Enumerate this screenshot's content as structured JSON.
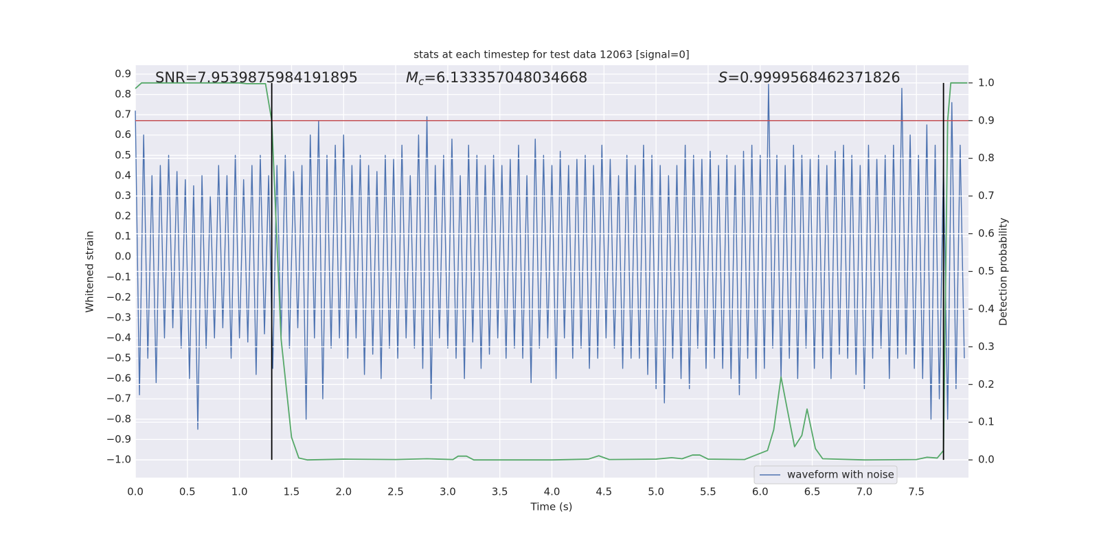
{
  "chart_data": {
    "type": "line",
    "title": "stats at each timestep for test data 12063 [signal=0]",
    "x_label": "Time (s)",
    "y_label": "Whitened strain",
    "y2_label": "Detection probability",
    "annotations": [
      {
        "text": "SNR=7.9539875984191895"
      },
      {
        "symbol": "M",
        "subscript": "c",
        "text": "=6.133357048034668"
      },
      {
        "symbol": "S",
        "text": "=0.9999568462371826"
      }
    ],
    "xlim": [
      0,
      8.0
    ],
    "ylim": [
      -1.088,
      0.944
    ],
    "y2lim": [
      -0.047,
      1.047
    ],
    "grid": true,
    "legend": "lower right",
    "xticks": [
      {
        "value": 0,
        "label": "0.0"
      },
      {
        "value": 0.5,
        "label": "0.5"
      },
      {
        "value": 1,
        "label": "1.0"
      },
      {
        "value": 1.5,
        "label": "1.5"
      },
      {
        "value": 2,
        "label": "2.0"
      },
      {
        "value": 2.5,
        "label": "2.5"
      },
      {
        "value": 3,
        "label": "3.0"
      },
      {
        "value": 3.5,
        "label": "3.5"
      },
      {
        "value": 4,
        "label": "4.0"
      },
      {
        "value": 4.5,
        "label": "4.5"
      },
      {
        "value": 5,
        "label": "5.0"
      },
      {
        "value": 5.5,
        "label": "5.5"
      },
      {
        "value": 6,
        "label": "6.0"
      },
      {
        "value": 6.5,
        "label": "6.5"
      },
      {
        "value": 7,
        "label": "7.0"
      },
      {
        "value": 7.5,
        "label": "7.5"
      }
    ],
    "yticks": [
      {
        "value": -1.0,
        "label": "−1.0"
      },
      {
        "value": -0.9,
        "label": "−0.9"
      },
      {
        "value": -0.8,
        "label": "−0.8"
      },
      {
        "value": -0.7,
        "label": "−0.7"
      },
      {
        "value": -0.6,
        "label": "−0.6"
      },
      {
        "value": -0.5,
        "label": "−0.5"
      },
      {
        "value": -0.4,
        "label": "−0.4"
      },
      {
        "value": -0.3,
        "label": "−0.3"
      },
      {
        "value": -0.2,
        "label": "−0.2"
      },
      {
        "value": -0.1,
        "label": "−0.1"
      },
      {
        "value": 0,
        "label": "0.0"
      },
      {
        "value": 0.1,
        "label": "0.1"
      },
      {
        "value": 0.2,
        "label": "0.2"
      },
      {
        "value": 0.3,
        "label": "0.3"
      },
      {
        "value": 0.4,
        "label": "0.4"
      },
      {
        "value": 0.5,
        "label": "0.5"
      },
      {
        "value": 0.6,
        "label": "0.6"
      },
      {
        "value": 0.7,
        "label": "0.7"
      },
      {
        "value": 0.8,
        "label": "0.8"
      },
      {
        "value": 0.9,
        "label": "0.9"
      }
    ],
    "y2ticks": [
      {
        "value": 0,
        "label": "0.0"
      },
      {
        "value": 0.1,
        "label": "0.1"
      },
      {
        "value": 0.2,
        "label": "0.2"
      },
      {
        "value": 0.3,
        "label": "0.3"
      },
      {
        "value": 0.4,
        "label": "0.4"
      },
      {
        "value": 0.5,
        "label": "0.5"
      },
      {
        "value": 0.6,
        "label": "0.6"
      },
      {
        "value": 0.7,
        "label": "0.7"
      },
      {
        "value": 0.8,
        "label": "0.8"
      },
      {
        "value": 0.9,
        "label": "0.9"
      },
      {
        "value": 1,
        "label": "1.0"
      }
    ],
    "threshold": {
      "value": 0.9,
      "axis": "y2",
      "color": "#c44e52"
    },
    "vlines": {
      "x": [
        1.31,
        7.76
      ],
      "ymin": 0,
      "ymax": 1,
      "axis": "y2",
      "color": "#000000"
    },
    "series": [
      {
        "name": "waveform with noise",
        "color": "#4c72b0",
        "axis": "y",
        "x": [
          0,
          0.04,
          0.08,
          0.12,
          0.16,
          0.2,
          0.24,
          0.28,
          0.32,
          0.36,
          0.4,
          0.44,
          0.48,
          0.52,
          0.56,
          0.6,
          0.64,
          0.68,
          0.72,
          0.76,
          0.8,
          0.84,
          0.88,
          0.92,
          0.96,
          1.0,
          1.04,
          1.08,
          1.12,
          1.16,
          1.2,
          1.24,
          1.28,
          1.32,
          1.36,
          1.4,
          1.44,
          1.48,
          1.52,
          1.56,
          1.6,
          1.64,
          1.68,
          1.72,
          1.76,
          1.8,
          1.84,
          1.88,
          1.92,
          1.96,
          2.0,
          2.04,
          2.08,
          2.12,
          2.16,
          2.2,
          2.24,
          2.28,
          2.32,
          2.36,
          2.4,
          2.44,
          2.48,
          2.52,
          2.56,
          2.6,
          2.64,
          2.68,
          2.72,
          2.76,
          2.8,
          2.84,
          2.88,
          2.92,
          2.96,
          3.0,
          3.04,
          3.08,
          3.12,
          3.16,
          3.2,
          3.24,
          3.28,
          3.32,
          3.36,
          3.4,
          3.44,
          3.48,
          3.52,
          3.56,
          3.6,
          3.64,
          3.68,
          3.72,
          3.76,
          3.8,
          3.84,
          3.88,
          3.92,
          3.96,
          4.0,
          4.04,
          4.08,
          4.12,
          4.16,
          4.2,
          4.24,
          4.28,
          4.32,
          4.36,
          4.4,
          4.44,
          4.48,
          4.52,
          4.56,
          4.6,
          4.64,
          4.68,
          4.72,
          4.76,
          4.8,
          4.84,
          4.88,
          4.92,
          4.96,
          5.0,
          5.04,
          5.08,
          5.12,
          5.16,
          5.2,
          5.24,
          5.28,
          5.32,
          5.36,
          5.4,
          5.44,
          5.48,
          5.52,
          5.56,
          5.6,
          5.64,
          5.68,
          5.72,
          5.76,
          5.8,
          5.84,
          5.88,
          5.92,
          5.96,
          6.0,
          6.04,
          6.08,
          6.12,
          6.16,
          6.2,
          6.24,
          6.28,
          6.32,
          6.36,
          6.4,
          6.44,
          6.48,
          6.52,
          6.56,
          6.6,
          6.64,
          6.68,
          6.72,
          6.76,
          6.8,
          6.84,
          6.88,
          6.92,
          6.96,
          7.0,
          7.04,
          7.08,
          7.12,
          7.16,
          7.2,
          7.24,
          7.28,
          7.32,
          7.36,
          7.4,
          7.44,
          7.48,
          7.52,
          7.56,
          7.6,
          7.64,
          7.68,
          7.72,
          7.76,
          7.8,
          7.84,
          7.88,
          7.92,
          7.96
        ],
        "values": [
          0.72,
          -0.68,
          0.6,
          -0.5,
          0.4,
          -0.62,
          0.45,
          -0.4,
          0.5,
          -0.35,
          0.42,
          -0.45,
          0.38,
          -0.6,
          0.35,
          -0.85,
          0.4,
          -0.45,
          0.3,
          -0.4,
          0.45,
          -0.35,
          0.4,
          -0.5,
          0.5,
          -0.4,
          0.38,
          -0.42,
          0.45,
          -0.58,
          0.5,
          -0.38,
          0.4,
          -0.55,
          0.45,
          -0.4,
          0.5,
          -0.45,
          0.42,
          -0.35,
          0.45,
          -0.8,
          0.6,
          -0.4,
          0.67,
          -0.7,
          0.5,
          -0.45,
          0.55,
          -0.4,
          0.6,
          -0.5,
          0.45,
          -0.4,
          0.5,
          -0.58,
          0.45,
          -0.48,
          0.42,
          -0.6,
          0.5,
          -0.45,
          0.48,
          -0.5,
          0.55,
          -0.4,
          0.4,
          -0.45,
          0.6,
          -0.55,
          0.69,
          -0.7,
          0.45,
          -0.4,
          0.5,
          -0.45,
          0.58,
          -0.5,
          0.4,
          -0.6,
          0.55,
          -0.42,
          0.5,
          -0.55,
          0.45,
          -0.48,
          0.5,
          -0.4,
          0.45,
          -0.5,
          0.48,
          -0.45,
          0.55,
          -0.5,
          0.4,
          -0.62,
          0.58,
          -0.45,
          0.5,
          -0.4,
          0.45,
          -0.6,
          0.52,
          -0.4,
          0.45,
          -0.5,
          0.48,
          -0.45,
          0.5,
          -0.55,
          0.45,
          -0.5,
          0.55,
          -0.4,
          0.48,
          -0.45,
          0.4,
          -0.55,
          0.5,
          -0.5,
          0.45,
          -0.5,
          0.55,
          -0.58,
          0.5,
          -0.65,
          0.45,
          -0.72,
          0.4,
          -0.5,
          0.45,
          -0.6,
          0.55,
          -0.65,
          0.5,
          -0.45,
          0.48,
          -0.55,
          0.52,
          -0.5,
          0.45,
          -0.55,
          0.5,
          -0.6,
          0.45,
          -0.68,
          0.52,
          -0.5,
          0.55,
          -0.6,
          0.5,
          -0.55,
          0.85,
          -0.45,
          0.5,
          -0.6,
          0.45,
          -0.5,
          0.55,
          -0.6,
          0.5,
          -0.45,
          0.48,
          -0.55,
          0.5,
          -0.5,
          0.45,
          -0.6,
          0.52,
          -0.48,
          0.55,
          -0.5,
          0.5,
          -0.58,
          0.45,
          -0.65,
          0.55,
          -0.5,
          0.48,
          -0.45,
          0.5,
          -0.6,
          0.55,
          -0.5,
          0.83,
          -0.48,
          0.6,
          -0.55,
          0.5,
          -0.6,
          0.65,
          -0.8,
          0.55,
          -0.7,
          0.45,
          -0.8,
          0.76,
          -0.65,
          0.55,
          -0.5
        ]
      },
      {
        "color": "#55a868",
        "axis": "y2",
        "x": [
          0,
          0.06,
          0.2,
          0.5,
          0.8,
          1.0,
          1.07,
          1.25,
          1.31,
          1.4,
          1.5,
          1.57,
          1.65,
          2.0,
          2.5,
          2.8,
          3.05,
          3.1,
          3.18,
          3.25,
          3.5,
          4.0,
          4.35,
          4.45,
          4.55,
          5.0,
          5.15,
          5.25,
          5.35,
          5.42,
          5.5,
          5.85,
          5.95,
          6.07,
          6.13,
          6.2,
          6.27,
          6.33,
          6.4,
          6.45,
          6.53,
          6.6,
          7.0,
          7.5,
          7.6,
          7.7,
          7.76,
          7.8,
          7.83,
          7.99
        ],
        "values": [
          0.985,
          1.0,
          1.0,
          1.0,
          1.0,
          1.0,
          0.998,
          0.998,
          0.9,
          0.32,
          0.06,
          0.005,
          0.0,
          0.002,
          0.001,
          0.003,
          0.001,
          0.01,
          0.01,
          0.0,
          0.0,
          0.0,
          0.002,
          0.011,
          0.001,
          0.002,
          0.006,
          0.003,
          0.013,
          0.013,
          0.002,
          0.001,
          0.012,
          0.025,
          0.08,
          0.22,
          0.12,
          0.035,
          0.065,
          0.135,
          0.03,
          0.003,
          0.0,
          0.001,
          0.007,
          0.005,
          0.025,
          0.9,
          1.0,
          1.0
        ]
      }
    ]
  }
}
